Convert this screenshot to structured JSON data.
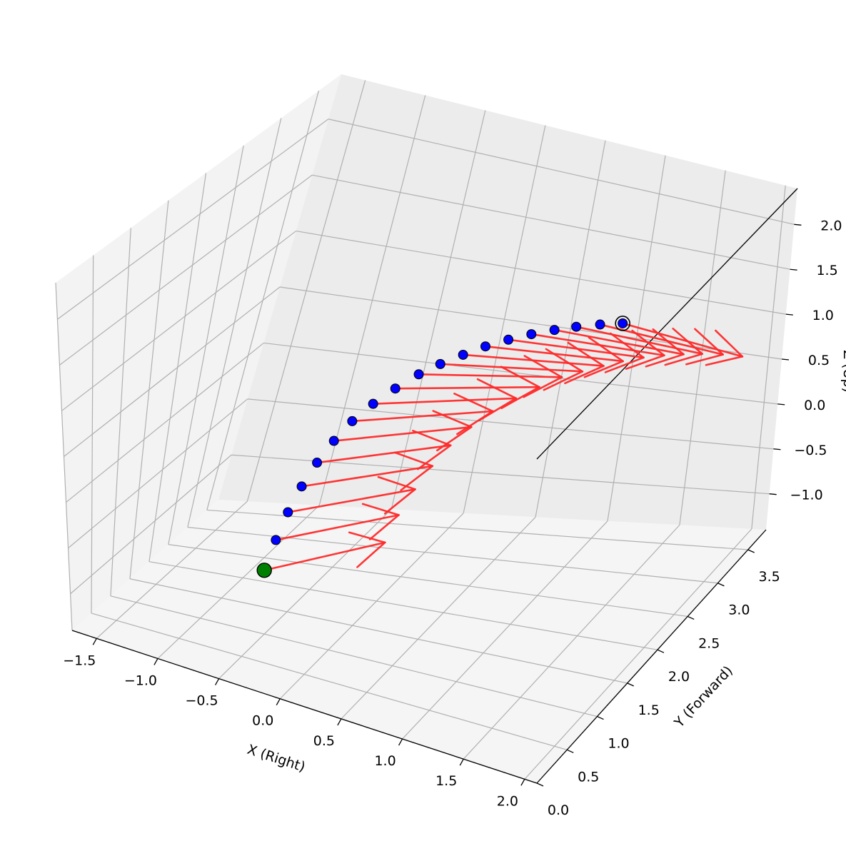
{
  "chart_data": {
    "type": "scatter",
    "projection": "3d",
    "title": "",
    "xlabel": "X (Right)",
    "ylabel": "Y (Forward)",
    "zlabel": "Z (Up)",
    "xlim": [
      -1.7,
      2.1
    ],
    "ylim": [
      0.0,
      3.8
    ],
    "zlim": [
      -1.4,
      2.4
    ],
    "xticks": [
      "−1.5",
      "−1.0",
      "−0.5",
      "0.0",
      "0.5",
      "1.0",
      "1.5",
      "2.0"
    ],
    "yticks": [
      "0.0",
      "0.5",
      "1.0",
      "1.5",
      "2.0",
      "2.5",
      "3.0",
      "3.5"
    ],
    "zticks": [
      "−1.0",
      "−0.5",
      "0.0",
      "0.5",
      "1.0",
      "1.5",
      "2.0"
    ],
    "grid": true,
    "colors": {
      "points": "#0000ff",
      "start": "#008000",
      "end_ring": "#000000",
      "arrows": "#ff2a2a",
      "pane_left": "#f3f3f3",
      "pane_back": "#ececec",
      "pane_floor": "#f5f5f5",
      "grid": "#b0b0b0"
    },
    "start_point": {
      "x": -0.1,
      "y": 0.0,
      "z": 0.0
    },
    "end_point": {
      "x": 1.0,
      "y": 3.5,
      "z": 0.85
    },
    "points": [
      {
        "x": -0.1,
        "y": 0.0,
        "z": 0.0
      },
      {
        "x": -0.12,
        "y": 0.25,
        "z": 0.18
      },
      {
        "x": -0.14,
        "y": 0.5,
        "z": 0.33
      },
      {
        "x": -0.15,
        "y": 0.75,
        "z": 0.46
      },
      {
        "x": -0.15,
        "y": 1.0,
        "z": 0.57
      },
      {
        "x": -0.14,
        "y": 1.25,
        "z": 0.66
      },
      {
        "x": -0.12,
        "y": 1.5,
        "z": 0.73
      },
      {
        "x": -0.08,
        "y": 1.75,
        "z": 0.78
      },
      {
        "x": -0.03,
        "y": 2.0,
        "z": 0.81
      },
      {
        "x": 0.03,
        "y": 2.25,
        "z": 0.83
      },
      {
        "x": 0.1,
        "y": 2.45,
        "z": 0.84
      },
      {
        "x": 0.18,
        "y": 2.65,
        "z": 0.84
      },
      {
        "x": 0.27,
        "y": 2.82,
        "z": 0.85
      },
      {
        "x": 0.37,
        "y": 2.98,
        "z": 0.85
      },
      {
        "x": 0.48,
        "y": 3.12,
        "z": 0.85
      },
      {
        "x": 0.6,
        "y": 3.24,
        "z": 0.85
      },
      {
        "x": 0.72,
        "y": 3.34,
        "z": 0.85
      },
      {
        "x": 0.86,
        "y": 3.43,
        "z": 0.85
      },
      {
        "x": 1.0,
        "y": 3.5,
        "z": 0.85
      }
    ],
    "arrows": [
      {
        "x": -0.1,
        "y": 0.0,
        "z": 0.0,
        "u": 0.55,
        "v": 0.9,
        "w": 0.0
      },
      {
        "x": -0.12,
        "y": 0.25,
        "z": 0.18,
        "u": 0.58,
        "v": 0.85,
        "w": 0.0
      },
      {
        "x": -0.14,
        "y": 0.5,
        "z": 0.33,
        "u": 0.62,
        "v": 0.82,
        "w": 0.0
      },
      {
        "x": -0.15,
        "y": 0.75,
        "z": 0.46,
        "u": 0.66,
        "v": 0.78,
        "w": 0.0
      },
      {
        "x": -0.15,
        "y": 1.0,
        "z": 0.57,
        "u": 0.7,
        "v": 0.73,
        "w": 0.0
      },
      {
        "x": -0.14,
        "y": 1.25,
        "z": 0.66,
        "u": 0.75,
        "v": 0.68,
        "w": 0.0
      },
      {
        "x": -0.12,
        "y": 1.5,
        "z": 0.73,
        "u": 0.8,
        "v": 0.62,
        "w": 0.0
      },
      {
        "x": -0.08,
        "y": 1.75,
        "z": 0.78,
        "u": 0.85,
        "v": 0.55,
        "w": 0.0
      },
      {
        "x": -0.03,
        "y": 2.0,
        "z": 0.81,
        "u": 0.89,
        "v": 0.48,
        "w": 0.0
      },
      {
        "x": 0.03,
        "y": 2.25,
        "z": 0.83,
        "u": 0.92,
        "v": 0.4,
        "w": 0.0
      },
      {
        "x": 0.1,
        "y": 2.45,
        "z": 0.84,
        "u": 0.95,
        "v": 0.32,
        "w": 0.0
      },
      {
        "x": 0.18,
        "y": 2.65,
        "z": 0.84,
        "u": 0.97,
        "v": 0.25,
        "w": 0.0
      },
      {
        "x": 0.27,
        "y": 2.82,
        "z": 0.85,
        "u": 0.98,
        "v": 0.18,
        "w": 0.0
      },
      {
        "x": 0.37,
        "y": 2.98,
        "z": 0.85,
        "u": 0.99,
        "v": 0.12,
        "w": 0.0
      },
      {
        "x": 0.48,
        "y": 3.12,
        "z": 0.85,
        "u": 1.0,
        "v": 0.06,
        "w": 0.0
      },
      {
        "x": 0.6,
        "y": 3.24,
        "z": 0.85,
        "u": 1.0,
        "v": 0.0,
        "w": 0.0
      },
      {
        "x": 0.72,
        "y": 3.34,
        "z": 0.85,
        "u": 1.0,
        "v": -0.05,
        "w": 0.0
      },
      {
        "x": 0.86,
        "y": 3.43,
        "z": 0.85,
        "u": 1.0,
        "v": -0.1,
        "w": 0.0
      },
      {
        "x": 1.0,
        "y": 3.5,
        "z": 0.85,
        "u": 1.0,
        "v": -0.15,
        "w": 0.0
      }
    ]
  }
}
